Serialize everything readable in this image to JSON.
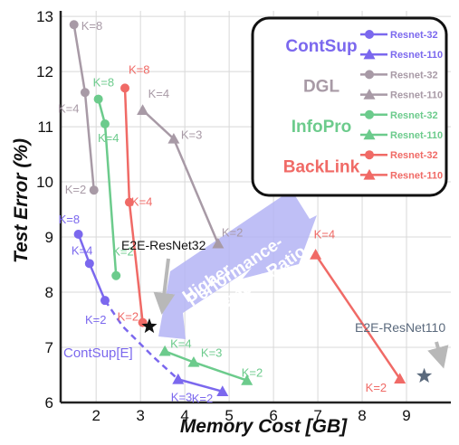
{
  "chart_data": {
    "type": "line",
    "xlabel": "Memory Cost [GB]",
    "ylabel": "Test Error (%)",
    "xlim": [
      1.2,
      10.0
    ],
    "ylim": [
      6.0,
      13.1
    ],
    "xticks": [
      2,
      3,
      4,
      5,
      6,
      7,
      8,
      9
    ],
    "yticks": [
      6,
      7,
      8,
      9,
      10,
      11,
      12,
      13
    ],
    "grid": true,
    "colors": {
      "ContSup": "#7b68ee",
      "DGL": "#a89aa6",
      "InfoPro": "#6ccb8c",
      "BackLink": "#f06a66",
      "axis": "#222222",
      "grid": "#d8d8d8"
    },
    "legend": {
      "position": "top-right",
      "groups": [
        {
          "name": "ContSup",
          "color": "#7b68ee",
          "entries": [
            "Resnet-32",
            "Resnet-110"
          ]
        },
        {
          "name": "DGL",
          "color": "#a89aa6",
          "entries": [
            "Resnet-32",
            "Resnet-110"
          ]
        },
        {
          "name": "InfoPro",
          "color": "#6ccb8c",
          "entries": [
            "Resnet-32",
            "Resnet-110"
          ]
        },
        {
          "name": "BackLink",
          "color": "#f06a66",
          "entries": [
            "Resnet-32",
            "Resnet-110"
          ]
        }
      ]
    },
    "series": [
      {
        "method": "ContSup",
        "model": "Resnet-32",
        "color": "#7b68ee",
        "marker": "circle",
        "x": [
          1.6,
          1.85,
          2.2
        ],
        "y": [
          9.05,
          8.52,
          7.85
        ],
        "labels": [
          "K=8",
          "K=4",
          "K=2"
        ]
      },
      {
        "method": "ContSup",
        "model": "Resnet-110",
        "color": "#7b68ee",
        "marker": "triangle",
        "x": [
          3.85,
          4.85
        ],
        "y": [
          6.42,
          6.2
        ],
        "labels": [
          "K=3",
          "K=2"
        ]
      },
      {
        "method": "DGL",
        "model": "Resnet-32",
        "color": "#a89aa6",
        "marker": "circle",
        "x": [
          1.5,
          1.75,
          1.95
        ],
        "y": [
          12.85,
          11.62,
          9.85
        ],
        "labels": [
          "K=8",
          "K=4",
          "K=2"
        ]
      },
      {
        "method": "DGL",
        "model": "Resnet-110",
        "color": "#a89aa6",
        "marker": "triangle",
        "x": [
          3.05,
          3.75,
          4.75
        ],
        "y": [
          11.3,
          10.78,
          8.88
        ],
        "labels": [
          "K=4",
          "K=3",
          "K=2"
        ]
      },
      {
        "method": "InfoPro",
        "model": "Resnet-32",
        "color": "#6ccb8c",
        "marker": "circle",
        "x": [
          2.05,
          2.2,
          2.45
        ],
        "y": [
          11.5,
          11.05,
          8.3
        ],
        "labels": [
          "K=8",
          "K=4",
          "K=2"
        ]
      },
      {
        "method": "InfoPro",
        "model": "Resnet-110",
        "color": "#6ccb8c",
        "marker": "triangle",
        "x": [
          3.55,
          4.2,
          5.4
        ],
        "y": [
          6.93,
          6.73,
          6.4
        ],
        "labels": [
          "K=4",
          "K=3",
          "K=2"
        ]
      },
      {
        "method": "BackLink",
        "model": "Resnet-32",
        "color": "#f06a66",
        "marker": "circle",
        "x": [
          2.65,
          2.75,
          3.05
        ],
        "y": [
          11.7,
          9.63,
          7.45
        ],
        "labels": [
          "K=8",
          "K=4",
          "K=2"
        ]
      },
      {
        "method": "BackLink",
        "model": "Resnet-110",
        "color": "#f06a66",
        "marker": "triangle",
        "x": [
          6.95,
          8.85
        ],
        "y": [
          8.68,
          6.43
        ],
        "labels": [
          "K=4",
          "K=2"
        ]
      }
    ],
    "extension_line": {
      "label": "ContSup[E]",
      "color": "#7b68ee",
      "x": [
        2.2,
        2.6,
        3.3,
        3.85
      ],
      "y": [
        7.85,
        7.38,
        6.82,
        6.42
      ]
    },
    "baselines": [
      {
        "label": "E2E-ResNet32",
        "x": 3.2,
        "y": 7.38,
        "color": "#111111"
      },
      {
        "label": "E2E-ResNet110",
        "x": 9.4,
        "y": 6.48,
        "color": "#5b6a7d"
      }
    ],
    "annotation": {
      "text_lines": [
        "Higher",
        "Performance-",
        "Memory Ratio"
      ],
      "color": "#b4b4f4"
    }
  }
}
